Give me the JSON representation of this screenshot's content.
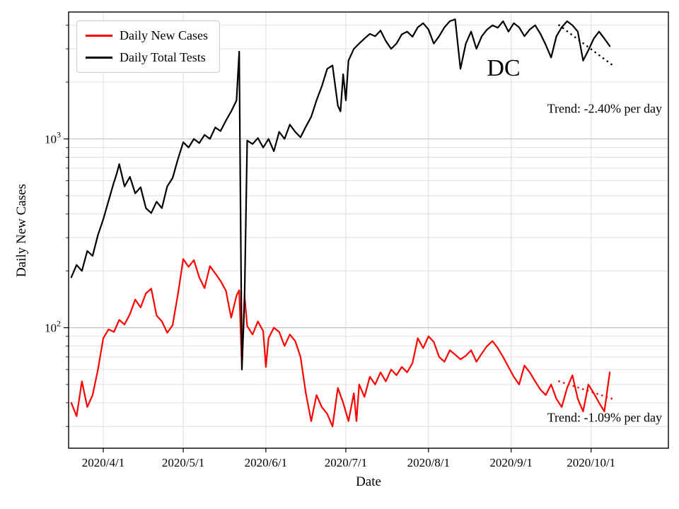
{
  "figure": {
    "ylabel": "Daily New Cases",
    "xlabel": "Date",
    "state_label": "DC",
    "trend_top": "Trend: -2.40% per day",
    "trend_bottom": "Trend: -1.09% per day",
    "legend": [
      {
        "label": "Daily New Cases",
        "color": "#ff0000"
      },
      {
        "label": "Daily Total Tests",
        "color": "#000000"
      }
    ],
    "colors": {
      "grid_major": "#c0c0c0",
      "grid_minor": "#dcdcdc",
      "axis": "#000000"
    }
  },
  "chart_data": {
    "type": "line",
    "title": "",
    "xlabel": "Date",
    "ylabel": "Daily New Cases",
    "y_scale": "log",
    "x_units": "days since 2020-03-20",
    "legend_position": "upper left",
    "grid": true,
    "axis": {
      "x_min": -1,
      "x_max": 224,
      "y_min": 23,
      "y_max": 4700
    },
    "x_ticks": [
      {
        "day": 12,
        "label": "2020/4/1"
      },
      {
        "day": 42,
        "label": "2020/5/1"
      },
      {
        "day": 73,
        "label": "2020/6/1"
      },
      {
        "day": 103,
        "label": "2020/7/1"
      },
      {
        "day": 134,
        "label": "2020/8/1"
      },
      {
        "day": 165,
        "label": "2020/9/1"
      },
      {
        "day": 195,
        "label": "2020/10/1"
      }
    ],
    "y_ticks": [
      {
        "value": 100,
        "label": "10",
        "exp": "2"
      },
      {
        "value": 1000,
        "label": "10",
        "exp": "3"
      }
    ],
    "grid_y_minor": [
      30,
      40,
      50,
      60,
      70,
      80,
      90,
      200,
      300,
      400,
      500,
      600,
      700,
      800,
      900,
      2000,
      3000,
      4000
    ],
    "series": [
      {
        "name": "Daily New Cases",
        "color": "#ff0000",
        "x": [
          0,
          2,
          4,
          6,
          8,
          10,
          12,
          14,
          16,
          18,
          20,
          22,
          24,
          26,
          28,
          30,
          32,
          34,
          36,
          38,
          40,
          42,
          44,
          46,
          48,
          50,
          52,
          54,
          56,
          58,
          60,
          62,
          63,
          64,
          65,
          66,
          68,
          70,
          72,
          73,
          74,
          76,
          78,
          80,
          82,
          84,
          86,
          88,
          90,
          92,
          94,
          96,
          98,
          100,
          102,
          104,
          106,
          107,
          108,
          110,
          112,
          114,
          116,
          118,
          120,
          122,
          124,
          126,
          128,
          130,
          132,
          134,
          136,
          138,
          140,
          142,
          144,
          146,
          148,
          150,
          152,
          154,
          156,
          158,
          160,
          162,
          164,
          166,
          168,
          170,
          172,
          174,
          176,
          178,
          180,
          182,
          184,
          186,
          188,
          190,
          192,
          194,
          196,
          198,
          200,
          202
        ],
        "y": [
          40,
          34,
          52,
          38,
          44,
          60,
          88,
          98,
          95,
          110,
          104,
          118,
          141,
          128,
          152,
          161,
          116,
          108,
          94,
          103,
          150,
          231,
          210,
          228,
          185,
          162,
          212,
          194,
          177,
          157,
          113,
          148,
          158,
          62,
          148,
          102,
          92,
          108,
          96,
          62,
          88,
          100,
          95,
          80,
          92,
          85,
          70,
          45,
          32,
          44,
          38,
          35,
          30,
          48,
          40,
          32,
          45,
          32,
          50,
          43,
          55,
          50,
          58,
          52,
          60,
          56,
          62,
          58,
          65,
          88,
          78,
          90,
          84,
          70,
          66,
          76,
          72,
          68,
          71,
          76,
          66,
          73,
          80,
          85,
          78,
          70,
          62,
          55,
          50,
          63,
          58,
          52,
          47,
          44,
          50,
          42,
          38,
          48,
          56,
          42,
          36,
          50,
          45,
          40,
          36,
          58
        ]
      },
      {
        "name": "Daily Total Tests",
        "color": "#000000",
        "x": [
          0,
          2,
          4,
          6,
          8,
          10,
          12,
          14,
          16,
          17,
          18,
          20,
          22,
          24,
          26,
          28,
          30,
          32,
          34,
          36,
          38,
          40,
          42,
          44,
          46,
          48,
          50,
          52,
          54,
          56,
          58,
          60,
          62,
          63,
          64,
          65,
          66,
          68,
          70,
          72,
          74,
          76,
          78,
          80,
          82,
          84,
          86,
          88,
          90,
          92,
          94,
          96,
          98,
          100,
          101,
          102,
          103,
          104,
          106,
          108,
          110,
          112,
          114,
          116,
          118,
          120,
          122,
          124,
          126,
          128,
          130,
          132,
          134,
          136,
          138,
          140,
          142,
          144,
          146,
          148,
          150,
          152,
          154,
          156,
          158,
          160,
          162,
          164,
          166,
          168,
          170,
          172,
          174,
          176,
          178,
          180,
          182,
          184,
          186,
          188,
          190,
          192,
          194,
          196,
          198,
          200,
          202
        ],
        "y": [
          185,
          215,
          200,
          255,
          240,
          310,
          375,
          470,
          590,
          650,
          735,
          560,
          630,
          515,
          555,
          430,
          405,
          465,
          430,
          560,
          620,
          780,
          960,
          900,
          1000,
          950,
          1050,
          1000,
          1150,
          1100,
          1250,
          1400,
          1600,
          2900,
          60,
          140,
          980,
          940,
          1010,
          900,
          1000,
          860,
          1090,
          1000,
          1190,
          1090,
          1020,
          1160,
          1310,
          1600,
          1900,
          2350,
          2450,
          1500,
          1400,
          2200,
          1600,
          2600,
          3000,
          3200,
          3400,
          3600,
          3500,
          3750,
          3300,
          3000,
          3200,
          3580,
          3700,
          3480,
          3900,
          4100,
          3800,
          3200,
          3500,
          3900,
          4200,
          4300,
          2350,
          3200,
          3700,
          3000,
          3500,
          3800,
          4000,
          3880,
          4200,
          3700,
          4100,
          3900,
          3500,
          3800,
          4000,
          3600,
          3150,
          2700,
          3500,
          3900,
          4200,
          4000,
          3700,
          2600,
          2950,
          3400,
          3700,
          3400,
          3100
        ]
      }
    ],
    "trend_lines": [
      {
        "series": "Daily Total Tests",
        "rate_pct_per_day": -2.4,
        "x_start": 183,
        "x_end": 203,
        "y_start": 4000,
        "y_end": 2460,
        "color": "#000000",
        "style": "dotted"
      },
      {
        "series": "Daily New Cases",
        "rate_pct_per_day": -1.09,
        "x_start": 183,
        "x_end": 203,
        "y_start": 52,
        "y_end": 42,
        "color": "#ff0000",
        "style": "dotted"
      }
    ],
    "annotations": [
      {
        "text": "DC"
      },
      {
        "text": "Trend: -2.40% per day"
      },
      {
        "text": "Trend: -1.09% per day"
      }
    ]
  }
}
